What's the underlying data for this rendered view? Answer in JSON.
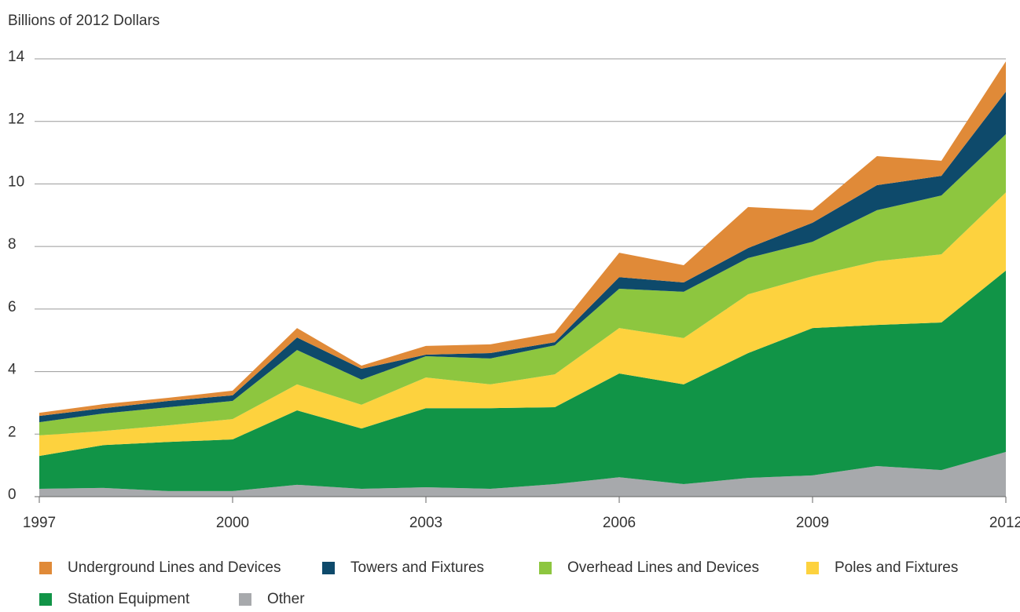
{
  "chart_data": {
    "type": "stacked_area",
    "y_axis_label": "Billions of 2012 Dollars",
    "x": [
      1997,
      1998,
      1999,
      2000,
      2001,
      2002,
      2003,
      2004,
      2005,
      2006,
      2007,
      2008,
      2009,
      2010,
      2011,
      2012
    ],
    "xlim": [
      1997,
      2012
    ],
    "xticks": [
      1997,
      2000,
      2003,
      2006,
      2009,
      2012
    ],
    "ylim": [
      0,
      14
    ],
    "yticks": [
      0,
      2,
      4,
      6,
      8,
      10,
      12,
      14
    ],
    "grid": true,
    "legend": "bottom",
    "series": [
      {
        "name": "Underground Lines and Devices",
        "color": "#e08a38",
        "values": [
          0.1,
          0.13,
          0.1,
          0.15,
          0.3,
          0.1,
          0.28,
          0.28,
          0.3,
          0.78,
          0.55,
          1.31,
          0.4,
          0.93,
          0.48,
          0.97
        ]
      },
      {
        "name": "Towers and Fixtures",
        "color": "#0e4a6b",
        "values": [
          0.2,
          0.17,
          0.2,
          0.18,
          0.4,
          0.35,
          0.05,
          0.17,
          0.1,
          0.37,
          0.3,
          0.32,
          0.61,
          0.8,
          0.63,
          1.36
        ]
      },
      {
        "name": "Overhead Lines and Devices",
        "color": "#8dc63f",
        "values": [
          0.42,
          0.56,
          0.58,
          0.58,
          1.1,
          0.8,
          0.68,
          0.83,
          0.93,
          1.26,
          1.48,
          1.16,
          1.1,
          1.63,
          1.88,
          1.86
        ]
      },
      {
        "name": "Poles and Fixtures",
        "color": "#fdd23e",
        "values": [
          0.66,
          0.45,
          0.53,
          0.65,
          0.83,
          0.76,
          0.98,
          0.76,
          1.05,
          1.45,
          1.48,
          1.88,
          1.66,
          2.04,
          2.18,
          2.5
        ]
      },
      {
        "name": "Station Equipment",
        "color": "#119447",
        "values": [
          1.05,
          1.37,
          1.57,
          1.65,
          2.38,
          1.93,
          2.53,
          2.58,
          2.46,
          3.32,
          3.19,
          3.99,
          4.71,
          4.51,
          4.72,
          5.8
        ]
      },
      {
        "name": "Other",
        "color": "#a7a9ac",
        "values": [
          0.25,
          0.28,
          0.18,
          0.18,
          0.38,
          0.25,
          0.3,
          0.25,
          0.4,
          0.62,
          0.4,
          0.6,
          0.68,
          0.98,
          0.85,
          1.43
        ]
      }
    ]
  }
}
